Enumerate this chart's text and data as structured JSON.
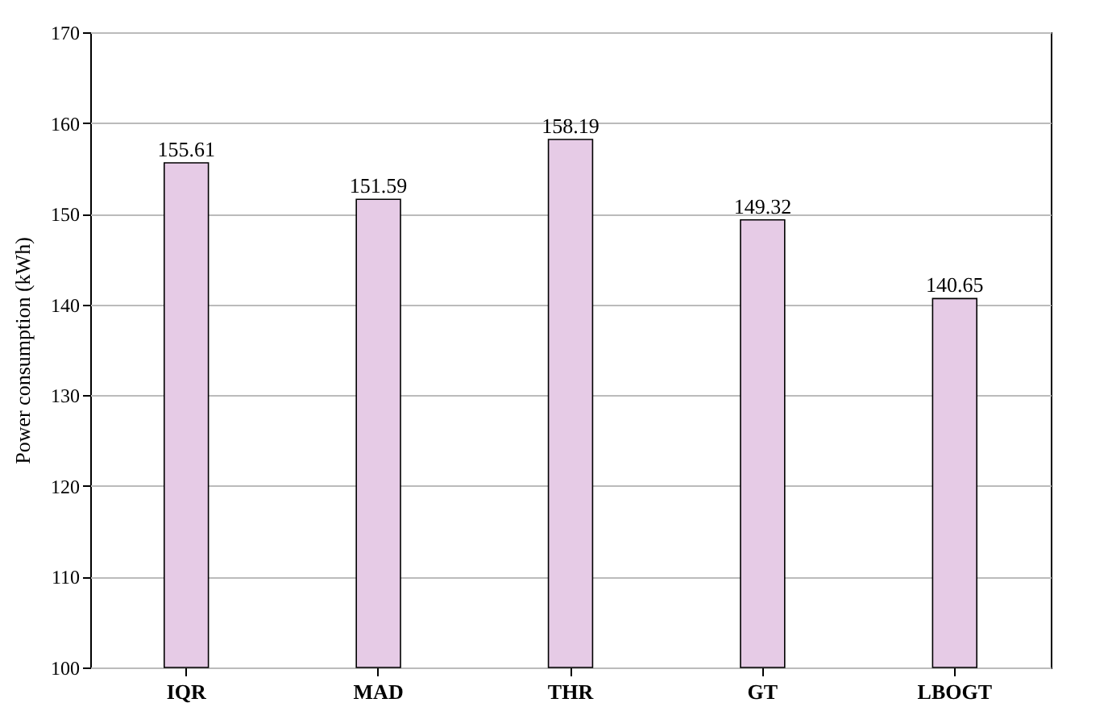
{
  "chart_data": {
    "type": "bar",
    "ylabel": "Power consumption (kWh)",
    "categories": [
      "IQR",
      "MAD",
      "THR",
      "GT",
      "LBOGT"
    ],
    "values": [
      155.61,
      151.59,
      158.19,
      149.32,
      140.65
    ],
    "color": "#e6cbe6",
    "ylim": [
      100,
      170
    ],
    "yticks": [
      100,
      110,
      120,
      130,
      140,
      150,
      160,
      170
    ],
    "grid": "y",
    "data_labels": true
  }
}
